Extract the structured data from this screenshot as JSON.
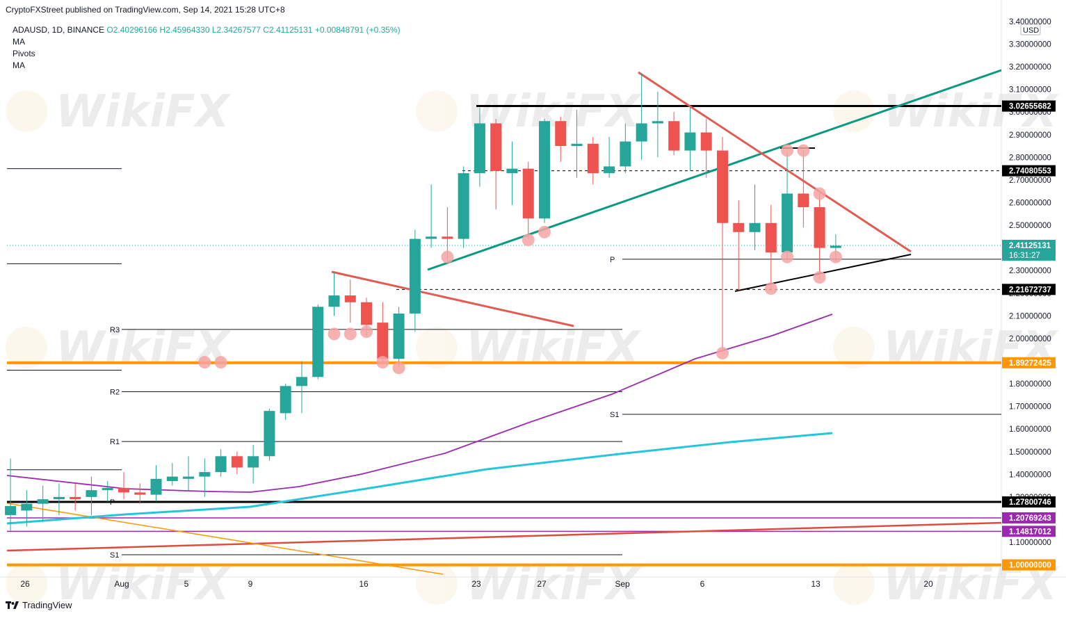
{
  "header": {
    "caption": "CryptoFXStreet published on TradingView.com, Sep 14, 2021 15:28 UTC+8"
  },
  "legend": {
    "symbol": "ADAUSD, 1D, BINANCE",
    "open": "O2.40296166",
    "high": "H2.45964330",
    "low": "L2.34267577",
    "close": "C2.41125131",
    "change": "+0.00848791 (+0.35%)",
    "indicators": [
      "MA",
      "Pivots",
      "MA"
    ]
  },
  "footer": {
    "brand": "TradingView"
  },
  "watermark": "WikiFX",
  "colors": {
    "up": "#26a69a",
    "down": "#ef5350",
    "orange": "#ff9800",
    "purple": "#9c27b0",
    "cyan": "#26c6da",
    "teal_trend": "#089981",
    "red_trend": "#e25b52",
    "circle": "#f4a3a3"
  },
  "chart_data": {
    "type": "candlestick",
    "currency": "USD",
    "x_ticks": [
      "26",
      "Aug",
      "5",
      "9",
      "16",
      "23",
      "27",
      "Sep",
      "6",
      "13",
      "20"
    ],
    "y_ticks": [
      "3.40000000",
      "3.30000000",
      "3.20000000",
      "3.10000000",
      "3.00000000",
      "2.90000000",
      "2.80000000",
      "2.70000000",
      "2.60000000",
      "2.50000000",
      "2.40000000",
      "2.30000000",
      "2.20000000",
      "2.10000000",
      "2.00000000",
      "1.90000000",
      "1.80000000",
      "1.70000000",
      "1.60000000",
      "1.50000000",
      "1.40000000",
      "1.30000000",
      "1.20000000",
      "1.10000000",
      "1.00000000"
    ],
    "ylim": [
      0.93,
      3.43
    ],
    "price_labels": [
      {
        "text": "3.02655682",
        "value": 3.02655682,
        "bg": "#000000"
      },
      {
        "text": "2.74080553",
        "value": 2.74080553,
        "bg": "#000000"
      },
      {
        "text": "2.41125131",
        "value": 2.41125131,
        "bg": "#26a69a",
        "countdown": "16:31:27"
      },
      {
        "text": "2.21672737",
        "value": 2.21672737,
        "bg": "#000000"
      },
      {
        "text": "1.89272425",
        "value": 1.89272425,
        "bg": "#ff9800"
      },
      {
        "text": "1.27800746",
        "value": 1.27800746,
        "bg": "#000000"
      },
      {
        "text": "1.20769243",
        "value": 1.20769243,
        "bg": "#9c27b0"
      },
      {
        "text": "1.14817012",
        "value": 1.14817012,
        "bg": "#9c27b0"
      },
      {
        "text": "1.00000000",
        "value": 1.0,
        "bg": "#ff9800"
      }
    ],
    "pivot_labels": [
      "R3",
      "R2",
      "R1",
      "P",
      "S1",
      "P",
      "S1"
    ],
    "candles": [
      {
        "date": "Jul 25",
        "o": 1.22,
        "h": 1.47,
        "l": 1.15,
        "c": 1.26
      },
      {
        "date": "Jul 26",
        "o": 1.24,
        "h": 1.33,
        "l": 1.17,
        "c": 1.27
      },
      {
        "date": "Jul 27",
        "o": 1.27,
        "h": 1.35,
        "l": 1.19,
        "c": 1.29
      },
      {
        "date": "Jul 28",
        "o": 1.29,
        "h": 1.36,
        "l": 1.22,
        "c": 1.3
      },
      {
        "date": "Jul 29",
        "o": 1.3,
        "h": 1.36,
        "l": 1.24,
        "c": 1.29
      },
      {
        "date": "Jul 30",
        "o": 1.3,
        "h": 1.39,
        "l": 1.22,
        "c": 1.33
      },
      {
        "date": "Jul 31",
        "o": 1.33,
        "h": 1.37,
        "l": 1.28,
        "c": 1.34
      },
      {
        "date": "Aug 1",
        "o": 1.34,
        "h": 1.41,
        "l": 1.29,
        "c": 1.32
      },
      {
        "date": "Aug 2",
        "o": 1.32,
        "h": 1.36,
        "l": 1.27,
        "c": 1.31
      },
      {
        "date": "Aug 3",
        "o": 1.31,
        "h": 1.44,
        "l": 1.28,
        "c": 1.38
      },
      {
        "date": "Aug 4",
        "o": 1.37,
        "h": 1.45,
        "l": 1.35,
        "c": 1.39
      },
      {
        "date": "Aug 5",
        "o": 1.38,
        "h": 1.48,
        "l": 1.33,
        "c": 1.39
      },
      {
        "date": "Aug 6",
        "o": 1.39,
        "h": 1.47,
        "l": 1.3,
        "c": 1.41
      },
      {
        "date": "Aug 7",
        "o": 1.41,
        "h": 1.51,
        "l": 1.39,
        "c": 1.48
      },
      {
        "date": "Aug 8",
        "o": 1.48,
        "h": 1.5,
        "l": 1.4,
        "c": 1.43
      },
      {
        "date": "Aug 9",
        "o": 1.43,
        "h": 1.53,
        "l": 1.36,
        "c": 1.48
      },
      {
        "date": "Aug 10",
        "o": 1.48,
        "h": 1.69,
        "l": 1.46,
        "c": 1.68
      },
      {
        "date": "Aug 11",
        "o": 1.67,
        "h": 1.8,
        "l": 1.64,
        "c": 1.79
      },
      {
        "date": "Aug 12",
        "o": 1.79,
        "h": 1.9,
        "l": 1.67,
        "c": 1.83
      },
      {
        "date": "Aug 13",
        "o": 1.83,
        "h": 2.15,
        "l": 1.82,
        "c": 2.14
      },
      {
        "date": "Aug 14",
        "o": 2.14,
        "h": 2.29,
        "l": 2.1,
        "c": 2.19
      },
      {
        "date": "Aug 15",
        "o": 2.19,
        "h": 2.26,
        "l": 2.07,
        "c": 2.16
      },
      {
        "date": "Aug 16",
        "o": 2.16,
        "h": 2.18,
        "l": 2.01,
        "c": 2.06
      },
      {
        "date": "Aug 17",
        "o": 2.07,
        "h": 2.16,
        "l": 1.89,
        "c": 1.91
      },
      {
        "date": "Aug 18",
        "o": 1.91,
        "h": 2.14,
        "l": 1.87,
        "c": 2.11
      },
      {
        "date": "Aug 19",
        "o": 2.11,
        "h": 2.48,
        "l": 2.03,
        "c": 2.44
      },
      {
        "date": "Aug 20",
        "o": 2.44,
        "h": 2.68,
        "l": 2.4,
        "c": 2.45
      },
      {
        "date": "Aug 21",
        "o": 2.45,
        "h": 2.58,
        "l": 2.34,
        "c": 2.44
      },
      {
        "date": "Aug 22",
        "o": 2.44,
        "h": 2.76,
        "l": 2.4,
        "c": 2.73
      },
      {
        "date": "Aug 23",
        "o": 2.73,
        "h": 3.02,
        "l": 2.67,
        "c": 2.95
      },
      {
        "date": "Aug 24",
        "o": 2.95,
        "h": 2.97,
        "l": 2.57,
        "c": 2.74
      },
      {
        "date": "Aug 25",
        "o": 2.73,
        "h": 2.87,
        "l": 2.59,
        "c": 2.75
      },
      {
        "date": "Aug 26",
        "o": 2.75,
        "h": 2.78,
        "l": 2.44,
        "c": 2.53
      },
      {
        "date": "Aug 27",
        "o": 2.53,
        "h": 2.97,
        "l": 2.51,
        "c": 2.96
      },
      {
        "date": "Aug 28",
        "o": 2.96,
        "h": 2.98,
        "l": 2.78,
        "c": 2.85
      },
      {
        "date": "Aug 29",
        "o": 2.85,
        "h": 3.01,
        "l": 2.71,
        "c": 2.86
      },
      {
        "date": "Aug 30",
        "o": 2.86,
        "h": 2.89,
        "l": 2.68,
        "c": 2.73
      },
      {
        "date": "Aug 31",
        "o": 2.73,
        "h": 2.89,
        "l": 2.71,
        "c": 2.76
      },
      {
        "date": "Sep 1",
        "o": 2.76,
        "h": 2.95,
        "l": 2.73,
        "c": 2.87
      },
      {
        "date": "Sep 2",
        "o": 2.87,
        "h": 3.17,
        "l": 2.79,
        "c": 2.95
      },
      {
        "date": "Sep 3",
        "o": 2.95,
        "h": 3.09,
        "l": 2.8,
        "c": 2.96
      },
      {
        "date": "Sep 4",
        "o": 2.96,
        "h": 3.0,
        "l": 2.81,
        "c": 2.83
      },
      {
        "date": "Sep 5",
        "o": 2.83,
        "h": 3.02,
        "l": 2.74,
        "c": 2.91
      },
      {
        "date": "Sep 6",
        "o": 2.91,
        "h": 2.97,
        "l": 2.71,
        "c": 2.83
      },
      {
        "date": "Sep 7",
        "o": 2.83,
        "h": 2.89,
        "l": 1.94,
        "c": 2.51
      },
      {
        "date": "Sep 8",
        "o": 2.51,
        "h": 2.61,
        "l": 2.21,
        "c": 2.47
      },
      {
        "date": "Sep 9",
        "o": 2.47,
        "h": 2.68,
        "l": 2.39,
        "c": 2.51
      },
      {
        "date": "Sep 10",
        "o": 2.51,
        "h": 2.59,
        "l": 2.21,
        "c": 2.38
      },
      {
        "date": "Sep 11",
        "o": 2.38,
        "h": 2.82,
        "l": 2.35,
        "c": 2.64
      },
      {
        "date": "Sep 12",
        "o": 2.64,
        "h": 2.83,
        "l": 2.49,
        "c": 2.58
      },
      {
        "date": "Sep 13",
        "o": 2.58,
        "h": 2.64,
        "l": 2.26,
        "c": 2.4
      },
      {
        "date": "Sep 14",
        "o": 2.4,
        "h": 2.46,
        "l": 2.34,
        "c": 2.41
      }
    ]
  }
}
